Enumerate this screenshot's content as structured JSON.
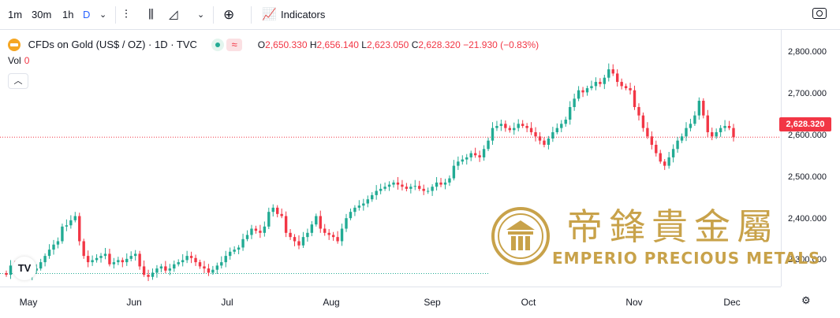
{
  "toolbar": {
    "intervals": [
      "1m",
      "30m",
      "1h",
      "D"
    ],
    "active_interval": "D",
    "indicators_label": "Indicators"
  },
  "legend": {
    "symbol": "CFDs on Gold (US$ / OZ) · 1D · TVC",
    "ohlc": {
      "o_label": "O",
      "o": "2,650.330",
      "h_label": "H",
      "h": "2,656.140",
      "l_label": "L",
      "l": "2,623.050",
      "c_label": "C",
      "c": "2,628.320",
      "change": "−21.930 (−0.83%)"
    },
    "vol_label": "Vol",
    "vol_value": "0"
  },
  "last_price": "2,628.320",
  "watermark": {
    "chinese": "帝鋒貴金屬",
    "english": "EMPERIO PRECIOUS METALS"
  },
  "colors": {
    "up": "#22ab94",
    "down": "#f23645",
    "brand_gold": "#c8a24a"
  },
  "chart_data": {
    "type": "candlestick",
    "title": "CFDs on Gold (US$ / OZ) · 1D · TVC",
    "x_labels": [
      "May",
      "Jun",
      "Jul",
      "Aug",
      "Sep",
      "Oct",
      "Nov",
      "Dec"
    ],
    "y_ticks": [
      "2,800.000",
      "2,700.000",
      "2,600.000",
      "2,500.000",
      "2,400.000",
      "2,300.000"
    ],
    "ylim": [
      2272,
      2884
    ],
    "reference_line": 2303,
    "current_price": 2628.32,
    "closes": [
      2300,
      2322,
      2312,
      2318,
      2305,
      2298,
      2310,
      2315,
      2330,
      2345,
      2360,
      2372,
      2380,
      2415,
      2418,
      2430,
      2440,
      2380,
      2345,
      2330,
      2335,
      2340,
      2345,
      2350,
      2325,
      2330,
      2335,
      2330,
      2338,
      2345,
      2350,
      2320,
      2300,
      2295,
      2305,
      2315,
      2320,
      2310,
      2315,
      2325,
      2330,
      2335,
      2345,
      2340,
      2330,
      2320,
      2315,
      2305,
      2312,
      2322,
      2330,
      2345,
      2355,
      2360,
      2365,
      2385,
      2395,
      2410,
      2405,
      2400,
      2415,
      2450,
      2460,
      2445,
      2440,
      2400,
      2390,
      2380,
      2370,
      2390,
      2400,
      2420,
      2440,
      2410,
      2400,
      2395,
      2390,
      2380,
      2410,
      2435,
      2450,
      2460,
      2465,
      2470,
      2480,
      2490,
      2500,
      2505,
      2510,
      2515,
      2520,
      2515,
      2510,
      2505,
      2510,
      2512,
      2505,
      2500,
      2500,
      2510,
      2520,
      2515,
      2520,
      2530,
      2560,
      2570,
      2575,
      2580,
      2590,
      2585,
      2580,
      2600,
      2620,
      2650,
      2655,
      2660,
      2650,
      2645,
      2650,
      2660,
      2655,
      2650,
      2640,
      2630,
      2620,
      2610,
      2625,
      2640,
      2650,
      2660,
      2670,
      2700,
      2720,
      2740,
      2735,
      2745,
      2750,
      2760,
      2755,
      2770,
      2790,
      2780,
      2760,
      2750,
      2745,
      2740,
      2700,
      2680,
      2650,
      2630,
      2610,
      2590,
      2570,
      2560,
      2580,
      2600,
      2620,
      2630,
      2650,
      2660,
      2680,
      2715,
      2680,
      2640,
      2630,
      2640,
      2650,
      2655,
      2650,
      2628
    ]
  }
}
